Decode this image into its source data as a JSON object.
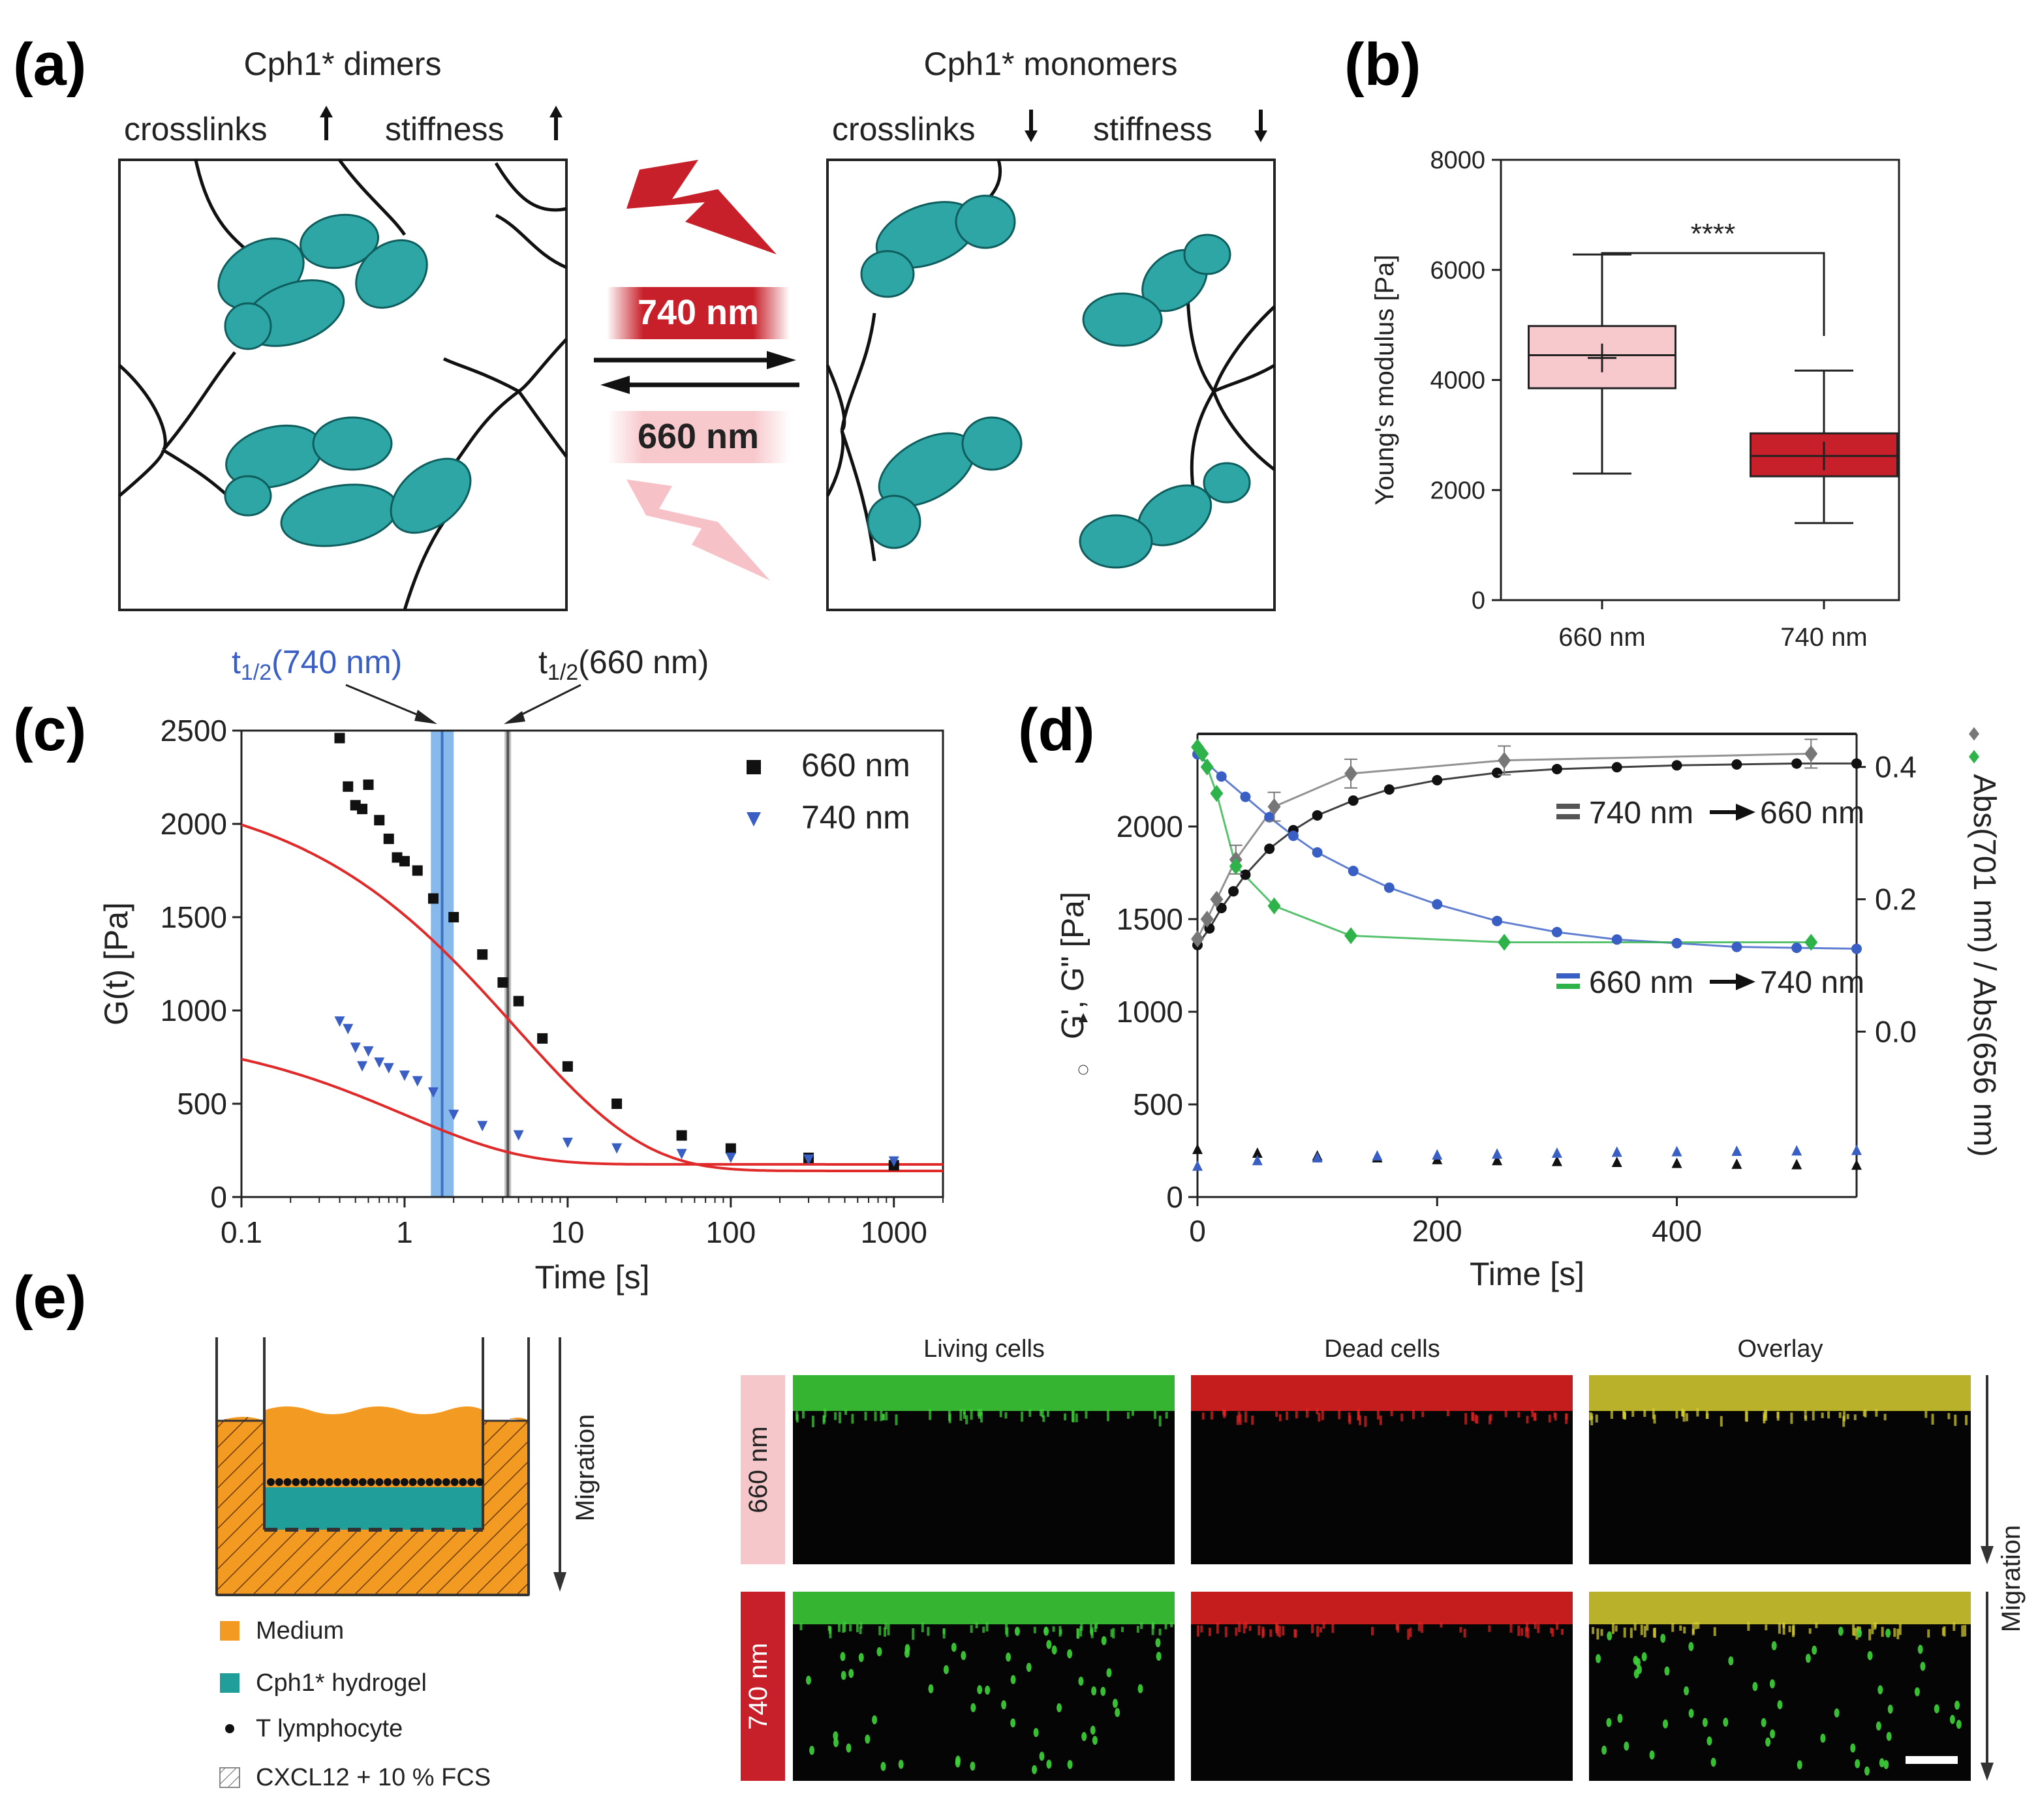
{
  "panels": {
    "a": {
      "letter": "(a)",
      "left_title": "Cph1* dimers",
      "left_crosslinks": "crosslinks",
      "left_stiffness": "stiffness",
      "right_title": "Cph1* monomers",
      "right_crosslinks": "crosslinks",
      "right_stiffness": "stiffness",
      "light_top": "740 nm",
      "light_bottom": "660 nm",
      "colors": {
        "protein": "#2fa6a6",
        "red": "#c8202a",
        "pink": "#f5b8bd"
      }
    },
    "b": {
      "letter": "(b)"
    },
    "c": {
      "letter": "(c)",
      "annot_740": "t1/2(740 nm)",
      "annot_660": "t1/2(660 nm)"
    },
    "d": {
      "letter": "(d)"
    },
    "e": {
      "letter": "(e)",
      "migration_label": "Migration",
      "legend": [
        {
          "label": "Medium",
          "color": "#f39a22"
        },
        {
          "label": "Cph1* hydrogel",
          "color": "#1f9e9a"
        },
        {
          "label": "T lymphocyte",
          "color": "#111111"
        },
        {
          "label": "CXCL12 + 10 % FCS",
          "color": "hatch"
        }
      ],
      "columns": [
        "Living cells",
        "Dead cells",
        "Overlay"
      ],
      "rows": [
        {
          "label": "660 nm",
          "color": "#f5c7cb"
        },
        {
          "label": "740 nm",
          "color": "#c8202a"
        }
      ],
      "migration_label_right": "Migration"
    }
  },
  "chart_data": [
    {
      "id": "b",
      "type": "box",
      "categories": [
        "660 nm",
        "740 nm"
      ],
      "ylabel": "Young's modulus [Pa]",
      "ylim": [
        0,
        8000
      ],
      "yticks": [
        0,
        2000,
        4000,
        6000,
        8000
      ],
      "boxes": [
        {
          "min": 2300,
          "q1": 3850,
          "median": 4450,
          "mean": 4400,
          "q3": 4980,
          "max": 6280,
          "color": "#f7c8cc"
        },
        {
          "min": 1400,
          "q1": 2250,
          "median": 2620,
          "mean": 2620,
          "q3": 3030,
          "max": 4170,
          "color": "#c8202a"
        }
      ],
      "significance": "****"
    },
    {
      "id": "c",
      "type": "scatter",
      "xscale": "log",
      "xlim": [
        0.1,
        2000
      ],
      "ylim": [
        0,
        2500
      ],
      "xticks": [
        0.1,
        1,
        10,
        100,
        1000
      ],
      "xtick_labels": [
        "0.1",
        "1",
        "10",
        "100",
        "1000"
      ],
      "yticks": [
        0,
        500,
        1000,
        1500,
        2000,
        2500
      ],
      "xlabel": "Time [s]",
      "ylabel": "G(t) [Pa]",
      "legend_position": "top-right",
      "series": [
        {
          "name": "660 nm",
          "marker": "square",
          "color": "#111111",
          "x": [
            0.4,
            0.45,
            0.5,
            0.55,
            0.6,
            0.7,
            0.8,
            0.9,
            1.0,
            1.2,
            1.5,
            2.0,
            3.0,
            4.0,
            5.0,
            7.0,
            10,
            20,
            50,
            100,
            300,
            1000
          ],
          "y": [
            2460,
            2200,
            2100,
            2080,
            2210,
            2020,
            1920,
            1820,
            1800,
            1750,
            1600,
            1500,
            1300,
            1150,
            1050,
            850,
            700,
            500,
            330,
            260,
            210,
            170
          ]
        },
        {
          "name": "740 nm",
          "marker": "triangle-down",
          "color": "#3a5fc4",
          "x": [
            0.4,
            0.45,
            0.5,
            0.55,
            0.6,
            0.7,
            0.8,
            1.0,
            1.2,
            1.5,
            2.0,
            3.0,
            5.0,
            10,
            20,
            50,
            100,
            300,
            1000
          ],
          "y": [
            940,
            900,
            800,
            700,
            780,
            720,
            690,
            650,
            620,
            560,
            440,
            380,
            330,
            290,
            260,
            230,
            210,
            200,
            190
          ]
        }
      ],
      "fits": [
        {
          "plateau": 2230,
          "tau": 4.8,
          "beta": 0.55,
          "inf": 140,
          "color": "#e02a2a"
        },
        {
          "plateau": 900,
          "tau": 1.0,
          "beta": 0.6,
          "inf": 175,
          "color": "#e02a2a"
        }
      ],
      "vlines": [
        {
          "x": 1.7,
          "color": "#3b73c4",
          "band": [
            1.45,
            2.0
          ],
          "band_color": "#6aa7e8"
        },
        {
          "x": 4.3,
          "color": "#555555",
          "band": [
            4.1,
            4.5
          ],
          "band_color": "#b0b0b0"
        }
      ]
    },
    {
      "id": "d",
      "type": "scatter",
      "xlim": [
        0,
        550
      ],
      "ylim": [
        0,
        2500
      ],
      "y2lim": [
        -0.25,
        0.45
      ],
      "xticks": [
        0,
        200,
        400
      ],
      "yticks": [
        0,
        500,
        1000,
        1500,
        2000
      ],
      "y2ticks": [
        0.0,
        0.2,
        0.4
      ],
      "xlabel": "Time [s]",
      "ylabel": "G', G\" [Pa]",
      "y2label": "Abs(701 nm) / Abs(656 nm)",
      "legend": [
        {
          "left": "740 nm",
          "right": "660 nm",
          "colors": [
            "#555555",
            "#555555"
          ]
        },
        {
          "left": "660 nm",
          "right": "740 nm",
          "colors": [
            "#3a5fc4",
            "#2db34a"
          ]
        }
      ],
      "series": [
        {
          "name": "G' 740->660",
          "marker": "circle",
          "color": "#111111",
          "axis": "left",
          "x": [
            0,
            10,
            20,
            30,
            40,
            60,
            80,
            100,
            130,
            160,
            200,
            250,
            300,
            350,
            400,
            450,
            500,
            550
          ],
          "y": [
            1360,
            1450,
            1560,
            1650,
            1740,
            1880,
            1980,
            2060,
            2140,
            2200,
            2250,
            2290,
            2310,
            2320,
            2330,
            2335,
            2340,
            2340
          ]
        },
        {
          "name": "G' 660->740",
          "marker": "circle",
          "color": "#3a5fc4",
          "axis": "left",
          "x": [
            0,
            20,
            40,
            60,
            80,
            100,
            130,
            160,
            200,
            250,
            300,
            350,
            400,
            450,
            500,
            550
          ],
          "y": [
            2390,
            2270,
            2160,
            2050,
            1950,
            1860,
            1760,
            1670,
            1580,
            1490,
            1430,
            1390,
            1370,
            1350,
            1345,
            1340
          ]
        },
        {
          "name": "G\" 740->660",
          "marker": "triangle-up",
          "color": "#111111",
          "axis": "left",
          "x": [
            0,
            50,
            100,
            150,
            200,
            250,
            300,
            350,
            400,
            450,
            500,
            550
          ],
          "y": [
            260,
            240,
            225,
            215,
            205,
            200,
            195,
            190,
            185,
            180,
            178,
            175
          ]
        },
        {
          "name": "G\" 660->740",
          "marker": "triangle-up",
          "color": "#3a5fc4",
          "axis": "left",
          "x": [
            0,
            50,
            100,
            150,
            200,
            250,
            300,
            350,
            400,
            450,
            500,
            550
          ],
          "y": [
            170,
            200,
            215,
            225,
            230,
            235,
            240,
            245,
            248,
            250,
            252,
            255
          ]
        },
        {
          "name": "Abs 740->660",
          "marker": "diamond",
          "color": "#777777",
          "axis": "right",
          "x": [
            0,
            8,
            16,
            32,
            64,
            128,
            256,
            512
          ],
          "y": [
            0.14,
            0.17,
            0.2,
            0.26,
            0.34,
            0.39,
            0.41,
            0.42
          ]
        },
        {
          "name": "Abs 660->740",
          "marker": "diamond",
          "color": "#2db34a",
          "axis": "right",
          "x": [
            0,
            4,
            8,
            16,
            32,
            64,
            128,
            256,
            512
          ],
          "y": [
            0.43,
            0.42,
            0.4,
            0.36,
            0.25,
            0.19,
            0.145,
            0.135,
            0.135
          ]
        }
      ]
    }
  ]
}
